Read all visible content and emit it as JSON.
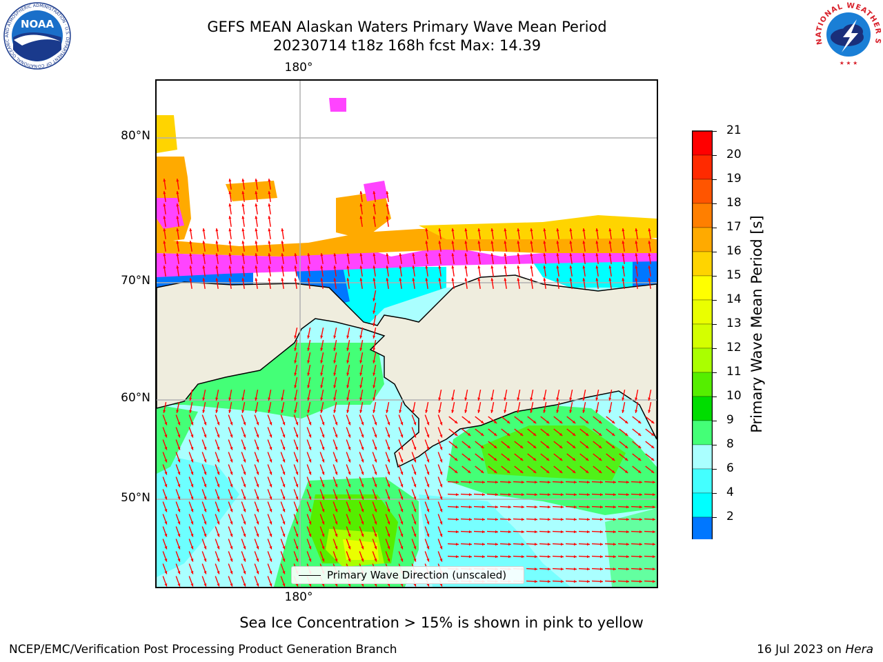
{
  "title": {
    "line1": "GEFS MEAN Alaskan Waters Primary Wave Mean Period",
    "line2": "20230714 t18z 168h fcst   Max: 14.39"
  },
  "map": {
    "lat_labels": [
      "80°N",
      "70°N",
      "60°N",
      "50°N"
    ],
    "lon_label_top": "180°",
    "lon_label_bottom": "180°",
    "legend_label": "Primary Wave Direction (unscaled)",
    "arrow_color": "#ff0000",
    "land_color": "#efedde",
    "ice_note": "Sea Ice Concentration > 15% is shown in pink to yellow"
  },
  "colorbar": {
    "label": "Primary Wave Mean Period [s]",
    "ticks": [
      "21",
      "20",
      "19",
      "18",
      "17",
      "16",
      "15",
      "14",
      "13",
      "12",
      "11",
      "10",
      "9",
      "8",
      "6",
      "4",
      "2"
    ],
    "colors_top_to_bottom": [
      "#ff0000",
      "#ff2a00",
      "#ff5500",
      "#ff7f00",
      "#ffaa00",
      "#ffd400",
      "#ffff00",
      "#eaff00",
      "#d4ff00",
      "#aaff00",
      "#55ee00",
      "#00dd00",
      "#44ff77",
      "#aaffff",
      "#44ffff",
      "#00ffff",
      "#0077ff"
    ],
    "extend_color": "#0000ff"
  },
  "footer": {
    "left": "NCEP/EMC/Verification Post Processing Product Generation Branch",
    "right_date": "16 Jul 2023 on ",
    "right_host": "Hera"
  },
  "logos": {
    "noaa_text": "NOAA",
    "noaa_ring_text": "NATIONAL OCEANIC AND ATMOSPHERIC ADMINISTRATION · U.S. DEPARTMENT OF COMMERCE",
    "nws_ring_text": "NATIONAL WEATHER SERVICE"
  }
}
